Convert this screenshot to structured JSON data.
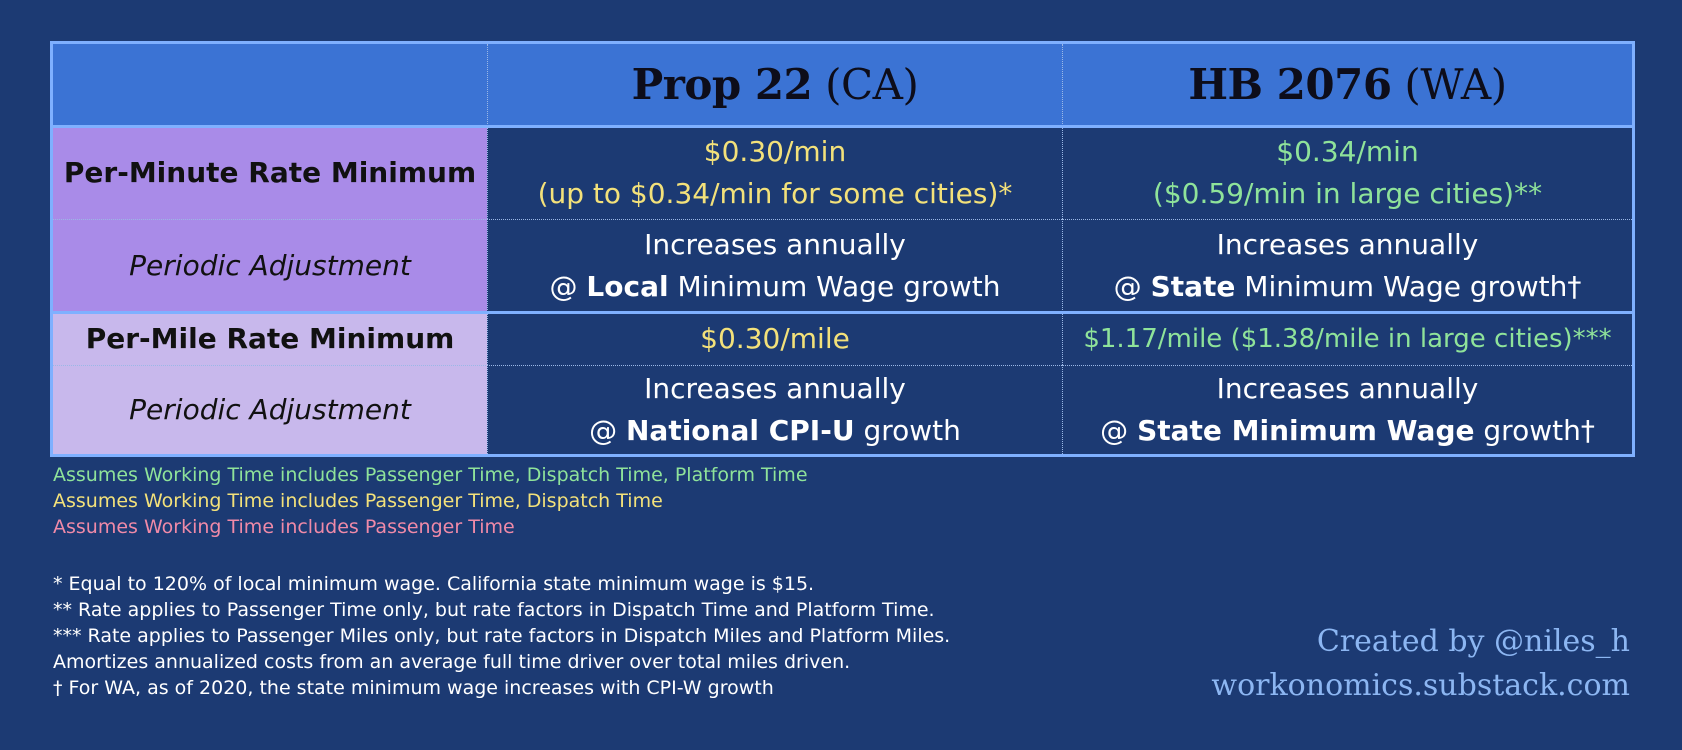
{
  "table": {
    "header": {
      "col1_bold": "Prop 22",
      "col1_rest": " (CA)",
      "col2_bold": "HB 2076",
      "col2_rest": " (WA)"
    },
    "rows": {
      "per_minute": {
        "label": "Per-Minute Rate Minimum",
        "ca_line1": "$0.30/min",
        "ca_line2": "(up to $0.34/min for some cities)*",
        "wa_line1": "$0.34/min",
        "wa_line2": "($0.59/min in large cities)**"
      },
      "per_minute_adj": {
        "label": "Periodic Adjustment",
        "ca_line1": "Increases annually",
        "ca_pre": "@ ",
        "ca_bold": "Local",
        "ca_post": " Minimum Wage growth",
        "wa_line1": "Increases annually",
        "wa_pre": "@ ",
        "wa_bold": "State",
        "wa_post": " Minimum Wage growth†"
      },
      "per_mile": {
        "label": "Per-Mile Rate Minimum",
        "ca": "$0.30/mile",
        "wa": "$1.17/mile ($1.38/mile in large cities)***"
      },
      "per_mile_adj": {
        "label": "Periodic Adjustment",
        "ca_line1": "Increases annually",
        "ca_pre": "@ ",
        "ca_bold": "National CPI-U",
        "ca_post": " growth",
        "wa_line1": "Increases annually",
        "wa_pre": "@ ",
        "wa_bold": "State Minimum Wage",
        "wa_post": " growth†"
      }
    }
  },
  "legend": {
    "green": "Assumes Working Time includes Passenger Time, Dispatch Time, Platform Time",
    "yellow": "Assumes Working Time includes Passenger Time, Dispatch Time",
    "pink": "Assumes Working Time includes Passenger Time"
  },
  "notes": [
    "* Equal to 120% of local minimum wage. California state minimum wage is $15.",
    "** Rate applies to Passenger Time only, but rate factors in Dispatch Time and Platform Time.",
    "*** Rate applies to Passenger Miles only, but rate factors in Dispatch Miles and Platform Miles.",
    "Amortizes annualized costs from an average full time driver over total miles driven.",
    "† For WA, as of 2020, the state minimum wage increases with CPI-W growth"
  ],
  "credit": {
    "line1": "Created by @niles_h",
    "line2": "workonomics.substack.com"
  },
  "colors": {
    "background": "#1c3a73",
    "header": "#3b73d4",
    "purple": "#a98be8",
    "lavender": "#c8b8ec",
    "green": "#8fe39a",
    "yellow": "#f3e17a",
    "pink": "#f08aa8"
  }
}
